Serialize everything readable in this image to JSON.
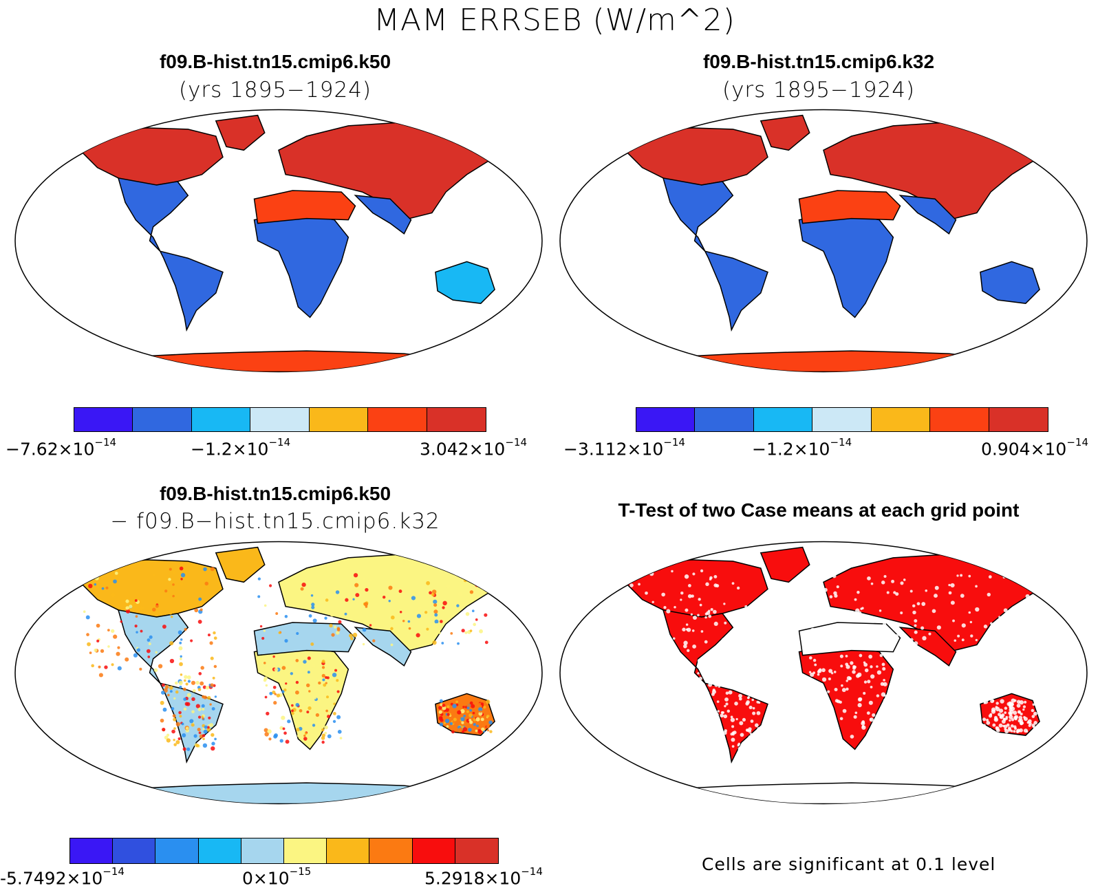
{
  "title": "MAM ERRSEB (W/m^2)",
  "panels": {
    "top_left": {
      "title": "f09.B-hist.tn15.cmip6.k50",
      "subtitle": "(yrs 1895−1924)",
      "colorbar": {
        "colors": [
          "#3a17f5",
          "#3068e0",
          "#18b8f4",
          "#cce8f6",
          "#fab81a",
          "#fb4113",
          "#d93128"
        ],
        "labels": [
          {
            "mant": "−7.62×10",
            "exp": "−14"
          },
          {
            "mant": "−1.2×10",
            "exp": "−14"
          },
          {
            "mant": "3.042×10",
            "exp": "−14"
          }
        ]
      }
    },
    "top_right": {
      "title": "f09.B-hist.tn15.cmip6.k32",
      "subtitle": "(yrs 1895−1924)",
      "colorbar": {
        "colors": [
          "#3a17f5",
          "#3068e0",
          "#18b8f4",
          "#cce8f6",
          "#fab81a",
          "#fb4113",
          "#d93128"
        ],
        "labels": [
          {
            "mant": "−3.112×10",
            "exp": "−14"
          },
          {
            "mant": "−1.2×10",
            "exp": "−14"
          },
          {
            "mant": "0.904×10",
            "exp": "−14"
          }
        ]
      }
    },
    "bottom_left": {
      "title": "f09.B-hist.tn15.cmip6.k50",
      "subtitle": "− f09.B−hist.tn15.cmip6.k32",
      "colorbar": {
        "colors": [
          "#3a17f5",
          "#3050df",
          "#2a8ff0",
          "#18b8f4",
          "#a6d6ee",
          "#fbf582",
          "#fab81a",
          "#fb7a12",
          "#f80d0d",
          "#d93128"
        ],
        "labels": [
          {
            "mant": "-5.7492×10",
            "exp": "−14"
          },
          {
            "mant": "0×10",
            "exp": "−15"
          },
          {
            "mant": "5.2918×10",
            "exp": "−14"
          }
        ]
      }
    },
    "bottom_right": {
      "title": "T-Test of two Case means at each grid point",
      "note": "Cells are significant at 0.1 level"
    }
  },
  "map_colors": {
    "ocean": "#ffffff",
    "coast": "#000000",
    "tl": {
      "northern": "#d93128",
      "americas": "#3068e0",
      "africa": "#3068e0",
      "desert": "#fb4113",
      "asia": "#d93128",
      "australia": "#18b8f4",
      "antarctica": "#fb4113"
    },
    "tr": {
      "northern": "#d93128",
      "americas": "#3068e0",
      "africa": "#3068e0",
      "desert": "#fb4113",
      "asia": "#d93128",
      "australia": "#3068e0",
      "antarctica": "#fb4113"
    },
    "bl": {
      "northern": "#fab81a",
      "americas": "#a6d6ee",
      "africa": "#fbf582",
      "desert": "#a6d6ee",
      "asia": "#fbf582",
      "australia": "#fb7a12",
      "antarctica": "#a6d6ee"
    },
    "br": {
      "northern": "#f80d0d",
      "americas": "#f80d0d",
      "africa": "#f80d0d",
      "desert": "#ffffff",
      "asia": "#f80d0d",
      "australia": "#f80d0d",
      "antarctica": "#ffffff"
    }
  }
}
